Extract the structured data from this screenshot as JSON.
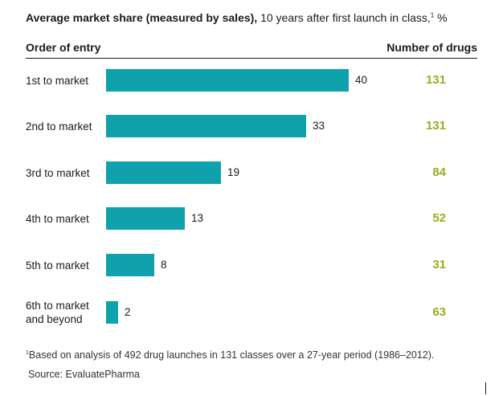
{
  "title": {
    "bold": "Average market share (measured by sales),",
    "rest": " 10 years after first launch in class,",
    "footnote_mark": "1",
    "unit": " %"
  },
  "headers": {
    "left": "Order of entry",
    "right": "Number of drugs"
  },
  "chart_data": {
    "type": "bar",
    "orientation": "horizontal",
    "title": "Average market share (measured by sales), 10 years after first launch in class, %",
    "xlabel": "",
    "ylabel": "Order of entry",
    "xlim": [
      0,
      40
    ],
    "grid": false,
    "categories": [
      "1st to market",
      "2nd to market",
      "3rd to market",
      "4th to market",
      "5th to market",
      "6th to market and beyond"
    ],
    "series": [
      {
        "values": [
          40,
          33,
          19,
          13,
          8,
          2
        ]
      }
    ],
    "number_of_drugs": [
      131,
      131,
      84,
      52,
      31,
      63
    ],
    "bar_color": "#0fa2ad",
    "count_color": "#9aad1d"
  },
  "category_lines": [
    [
      "1st to market"
    ],
    [
      "2nd to market"
    ],
    [
      "3rd to market"
    ],
    [
      "4th to market"
    ],
    [
      "5th to market"
    ],
    [
      "6th to market",
      "and beyond"
    ]
  ],
  "footnote": {
    "mark": "1",
    "text": "Based on analysis of 492 drug launches in 131 classes over a 27-year period (1986–2012)."
  },
  "source": "Source: EvaluatePharma"
}
